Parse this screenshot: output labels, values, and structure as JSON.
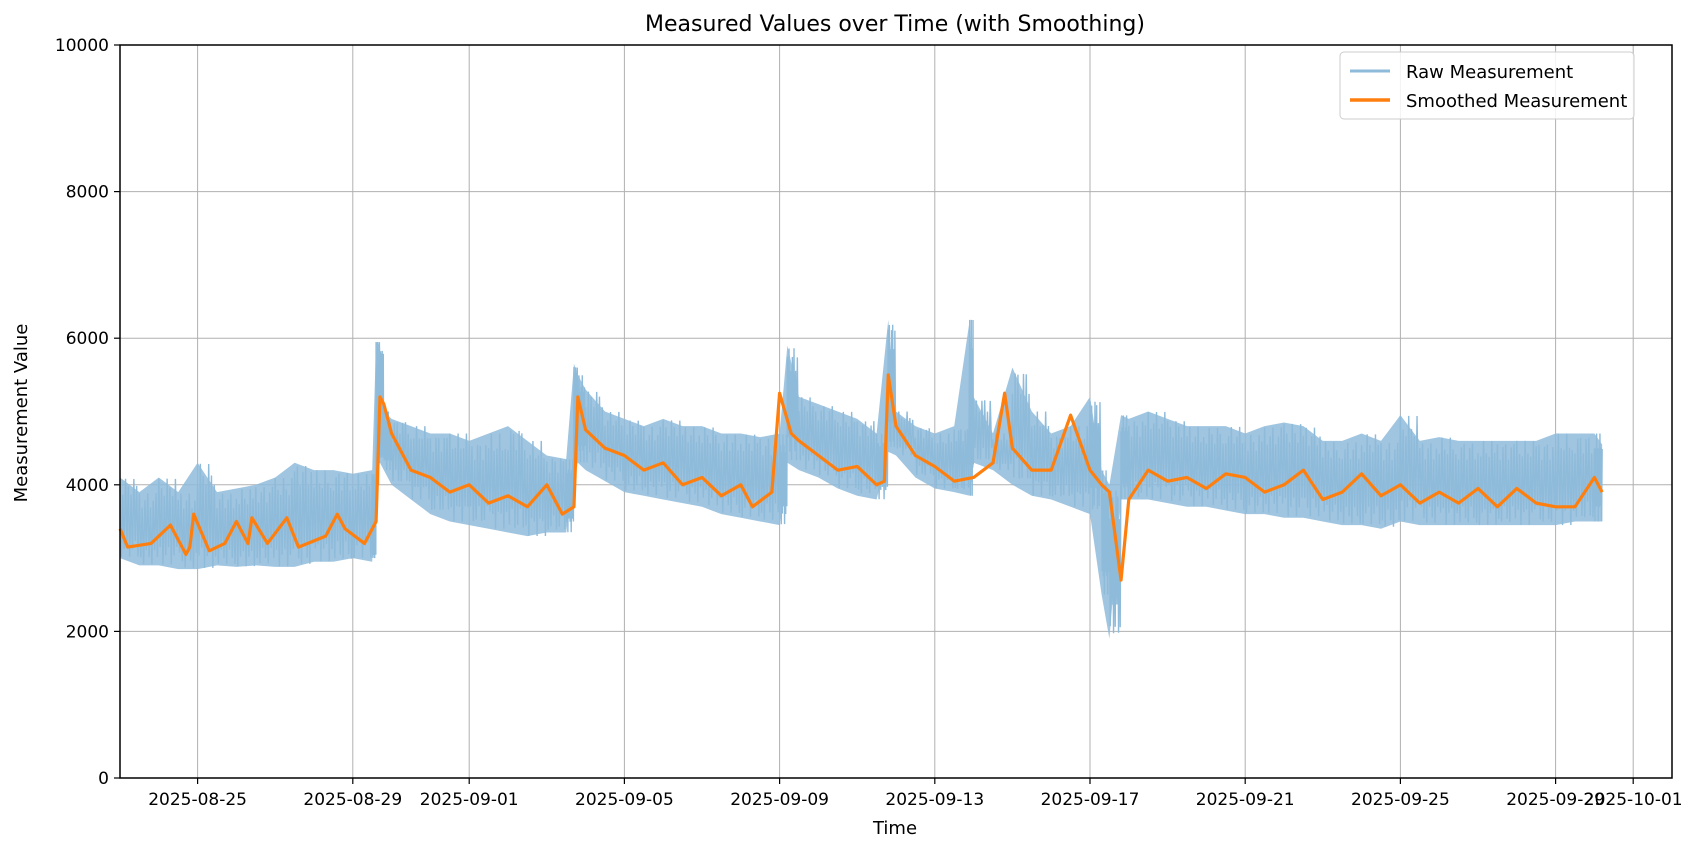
{
  "chart_data": {
    "type": "line",
    "title": "Measured Values over Time (with Smoothing)",
    "xlabel": "Time",
    "ylabel": "Measurement Value",
    "ylim": [
      0,
      10000
    ],
    "xlim_days": [
      -2.0,
      38.0
    ],
    "x_unit": "days since 2025-08-25",
    "grid": true,
    "legend_position": "top-right",
    "y_ticks": [
      0,
      2000,
      4000,
      6000,
      8000,
      10000
    ],
    "x_ticks": [
      {
        "day": 0,
        "label": "2025-08-25"
      },
      {
        "day": 4,
        "label": "2025-08-29"
      },
      {
        "day": 7,
        "label": "2025-09-01"
      },
      {
        "day": 11,
        "label": "2025-09-05"
      },
      {
        "day": 15,
        "label": "2025-09-09"
      },
      {
        "day": 19,
        "label": "2025-09-13"
      },
      {
        "day": 23,
        "label": "2025-09-17"
      },
      {
        "day": 27,
        "label": "2025-09-21"
      },
      {
        "day": 31,
        "label": "2025-09-25"
      },
      {
        "day": 35,
        "label": "2025-09-29"
      },
      {
        "day": 37,
        "label": "2025-10-01"
      }
    ],
    "series": [
      {
        "name": "Raw Measurement",
        "color": "#8fbbda",
        "style": "band",
        "x": [
          -2.0,
          -1.5,
          -1.0,
          -0.5,
          0.0,
          0.5,
          1.0,
          1.5,
          2.0,
          2.5,
          3.0,
          3.5,
          4.0,
          4.5,
          4.6,
          4.7,
          4.8,
          5.0,
          5.5,
          6.0,
          6.5,
          7.0,
          7.5,
          8.0,
          8.5,
          9.0,
          9.5,
          9.7,
          9.8,
          10.0,
          10.5,
          11.0,
          11.5,
          12.0,
          12.5,
          13.0,
          13.5,
          14.0,
          14.5,
          15.0,
          15.2,
          15.5,
          16.0,
          16.5,
          17.0,
          17.5,
          17.8,
          18.0,
          18.5,
          19.0,
          19.5,
          19.9,
          20.0,
          20.5,
          21.0,
          21.5,
          22.0,
          22.5,
          23.0,
          23.3,
          23.5,
          23.8,
          24.0,
          24.5,
          25.0,
          25.5,
          26.0,
          26.5,
          27.0,
          27.5,
          28.0,
          28.5,
          29.0,
          29.5,
          30.0,
          30.5,
          31.0,
          31.5,
          32.0,
          32.5,
          33.0,
          33.5,
          34.0,
          34.5,
          35.0,
          35.5,
          36.0,
          36.2
        ],
        "low": [
          3000,
          2900,
          2900,
          2850,
          2850,
          2900,
          2880,
          2900,
          2880,
          2880,
          2950,
          2950,
          3000,
          2950,
          4000,
          4300,
          4200,
          4000,
          3800,
          3600,
          3500,
          3450,
          3400,
          3350,
          3300,
          3350,
          3350,
          4200,
          4300,
          4200,
          4050,
          3900,
          3850,
          3800,
          3750,
          3700,
          3600,
          3550,
          3500,
          3450,
          4300,
          4200,
          4100,
          3950,
          3850,
          3800,
          4450,
          4400,
          4100,
          3950,
          3900,
          3850,
          4300,
          4200,
          4000,
          3850,
          3800,
          3700,
          3600,
          2500,
          1900,
          3800,
          3800,
          3800,
          3750,
          3700,
          3700,
          3650,
          3600,
          3600,
          3550,
          3550,
          3500,
          3450,
          3450,
          3400,
          3500,
          3450,
          3450,
          3450,
          3450,
          3450,
          3450,
          3450,
          3450,
          3500,
          3500,
          3500
        ],
        "high": [
          4100,
          3900,
          4100,
          3900,
          4300,
          3900,
          3950,
          4000,
          4100,
          4300,
          4200,
          4200,
          4150,
          4200,
          5950,
          5900,
          5000,
          4900,
          4800,
          4700,
          4700,
          4600,
          4700,
          4800,
          4600,
          4400,
          4350,
          5650,
          5500,
          5300,
          5000,
          4900,
          4800,
          4900,
          4800,
          4800,
          4700,
          4700,
          4650,
          4700,
          5900,
          5200,
          5100,
          5000,
          4900,
          4700,
          6250,
          5000,
          4800,
          4700,
          4800,
          6250,
          5200,
          4700,
          5600,
          5000,
          4700,
          4800,
          5200,
          4200,
          4000,
          4950,
          4900,
          5000,
          4900,
          4800,
          4800,
          4800,
          4700,
          4800,
          4850,
          4800,
          4600,
          4600,
          4700,
          4600,
          4950,
          4600,
          4650,
          4600,
          4600,
          4600,
          4600,
          4600,
          4700,
          4700,
          4700,
          4550
        ]
      },
      {
        "name": "Smoothed Measurement",
        "color": "#ff7f0e",
        "style": "line",
        "x": [
          -2.0,
          -1.8,
          -1.2,
          -0.7,
          -0.3,
          -0.2,
          -0.1,
          0.3,
          0.7,
          1.0,
          1.3,
          1.4,
          1.8,
          2.3,
          2.6,
          3.3,
          3.6,
          3.8,
          4.3,
          4.6,
          4.7,
          4.8,
          5.0,
          5.5,
          6.0,
          6.5,
          7.0,
          7.5,
          8.0,
          8.5,
          9.0,
          9.4,
          9.7,
          9.8,
          10.0,
          10.5,
          11.0,
          11.5,
          12.0,
          12.5,
          13.0,
          13.5,
          14.0,
          14.3,
          14.8,
          15.0,
          15.3,
          15.5,
          16.0,
          16.5,
          17.0,
          17.5,
          17.7,
          17.8,
          18.0,
          18.5,
          19.0,
          19.5,
          20.0,
          20.5,
          20.8,
          21.0,
          21.5,
          22.0,
          22.5,
          23.0,
          23.3,
          23.5,
          23.8,
          24.0,
          24.5,
          25.0,
          25.5,
          26.0,
          26.5,
          27.0,
          27.5,
          28.0,
          28.5,
          29.0,
          29.5,
          30.0,
          30.5,
          31.0,
          31.5,
          32.0,
          32.5,
          33.0,
          33.5,
          34.0,
          34.5,
          35.0,
          35.5,
          36.0,
          36.2
        ],
        "y": [
          3400,
          3150,
          3200,
          3450,
          3050,
          3150,
          3600,
          3100,
          3200,
          3500,
          3200,
          3550,
          3200,
          3550,
          3150,
          3300,
          3600,
          3400,
          3200,
          3500,
          5200,
          5100,
          4700,
          4200,
          4100,
          3900,
          4000,
          3750,
          3850,
          3700,
          4000,
          3600,
          3700,
          5200,
          4750,
          4500,
          4400,
          4200,
          4300,
          4000,
          4100,
          3850,
          4000,
          3700,
          3900,
          5250,
          4700,
          4600,
          4400,
          4200,
          4250,
          4000,
          4050,
          5500,
          4800,
          4400,
          4250,
          4050,
          4100,
          4300,
          5250,
          4500,
          4200,
          4200,
          4950,
          4200,
          4000,
          3900,
          2700,
          3800,
          4200,
          4050,
          4100,
          3950,
          4150,
          4100,
          3900,
          4000,
          4200,
          3800,
          3900,
          4150,
          3850,
          4000,
          3750,
          3900,
          3750,
          3950,
          3700,
          3950,
          3750,
          3700,
          3700,
          4100,
          3900
        ]
      }
    ]
  }
}
